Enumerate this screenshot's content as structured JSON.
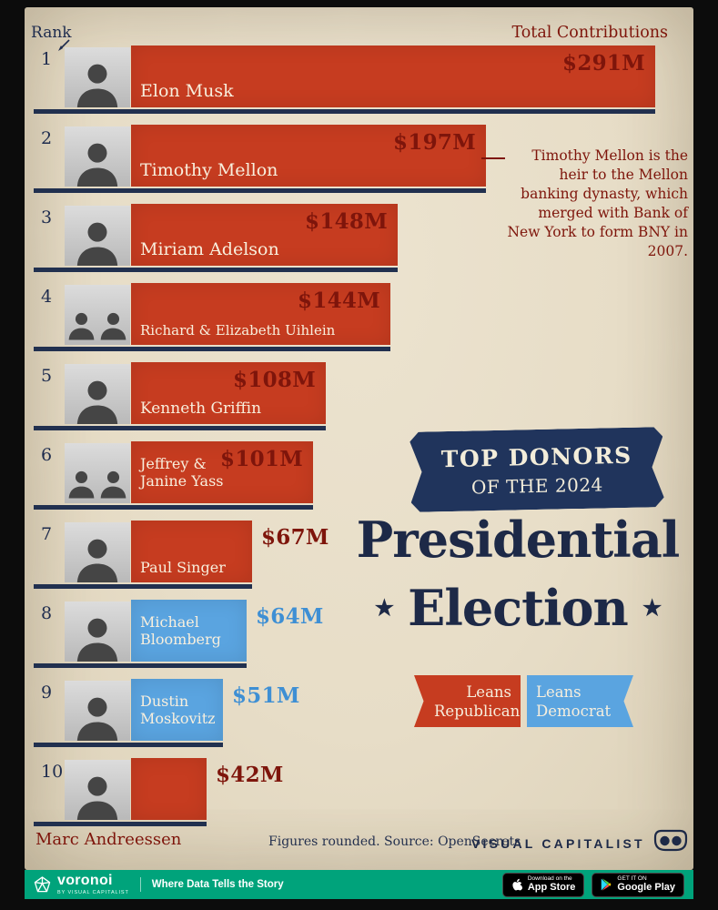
{
  "colors": {
    "republican": "#c63c20",
    "democrat": "#5aa4e0",
    "democrat_text": "#3e8fd4",
    "navy": "#1e2c4e",
    "maroon": "#7e150b",
    "beige": "#e8dfca",
    "green_bar": "#00a37b"
  },
  "header": {
    "rank_label": "Rank",
    "total_label": "Total Contributions"
  },
  "chart_data": {
    "type": "bar",
    "orientation": "horizontal",
    "title": "Top Donors of the 2024 Presidential Election",
    "unit": "USD millions, rounded",
    "categories": [
      "Elon Musk",
      "Timothy Mellon",
      "Miriam Adelson",
      "Richard & Elizabeth Uihlein",
      "Kenneth Griffin",
      "Jeffrey & Janine Yass",
      "Paul Singer",
      "Michael Bloomberg",
      "Dustin Moskovitz",
      "Marc Andreessen"
    ],
    "values": [
      291,
      197,
      148,
      144,
      108,
      101,
      67,
      64,
      51,
      42
    ],
    "donors": [
      {
        "rank": 1,
        "name": "Elon Musk",
        "amount": "$291M",
        "value": 291,
        "lean": "republican",
        "people": 1
      },
      {
        "rank": 2,
        "name": "Timothy Mellon",
        "amount": "$197M",
        "value": 197,
        "lean": "republican",
        "people": 1
      },
      {
        "rank": 3,
        "name": "Miriam Adelson",
        "amount": "$148M",
        "value": 148,
        "lean": "republican",
        "people": 1
      },
      {
        "rank": 4,
        "name": "Richard & Elizabeth Uihlein",
        "amount": "$144M",
        "value": 144,
        "lean": "republican",
        "people": 2
      },
      {
        "rank": 5,
        "name": "Kenneth Griffin",
        "amount": "$108M",
        "value": 108,
        "lean": "republican",
        "people": 1
      },
      {
        "rank": 6,
        "name": "Jeffrey & Janine Yass",
        "amount": "$101M",
        "value": 101,
        "lean": "republican",
        "people": 2
      },
      {
        "rank": 7,
        "name": "Paul Singer",
        "amount": "$67M",
        "value": 67,
        "lean": "republican",
        "people": 1
      },
      {
        "rank": 8,
        "name": "Michael Bloomberg",
        "amount": "$64M",
        "value": 64,
        "lean": "democrat",
        "people": 1
      },
      {
        "rank": 9,
        "name": "Dustin Moskovitz",
        "amount": "$51M",
        "value": 51,
        "lean": "democrat",
        "people": 1
      },
      {
        "rank": 10,
        "name": "Marc Andreessen",
        "amount": "$42M",
        "value": 42,
        "lean": "republican",
        "people": 1
      }
    ]
  },
  "annotation": {
    "mellon_note": "Timothy Mellon is the heir to the Mellon banking dynasty, which merged with Bank of New York to form BNY in 2007."
  },
  "title_block": {
    "banner_line1": "TOP DONORS",
    "banner_line2": "OF THE 2024",
    "main_line1": "Presidential",
    "main_line2": "Election",
    "star": "★"
  },
  "legend": {
    "republican": "Leans Republican",
    "democrat": "Leans Democrat"
  },
  "footer": {
    "note": "Figures rounded. Source: OpenSecrets",
    "brand": "VISUAL CAPITALIST"
  },
  "bottom_bar": {
    "brand": "voronoi",
    "byline": "BY VISUAL CAPITALIST",
    "tagline": "Where Data Tells the Story",
    "appstore_line1": "Download on the",
    "appstore_line2": "App Store",
    "gplay_line1": "GET IT ON",
    "gplay_line2": "Google Play"
  }
}
